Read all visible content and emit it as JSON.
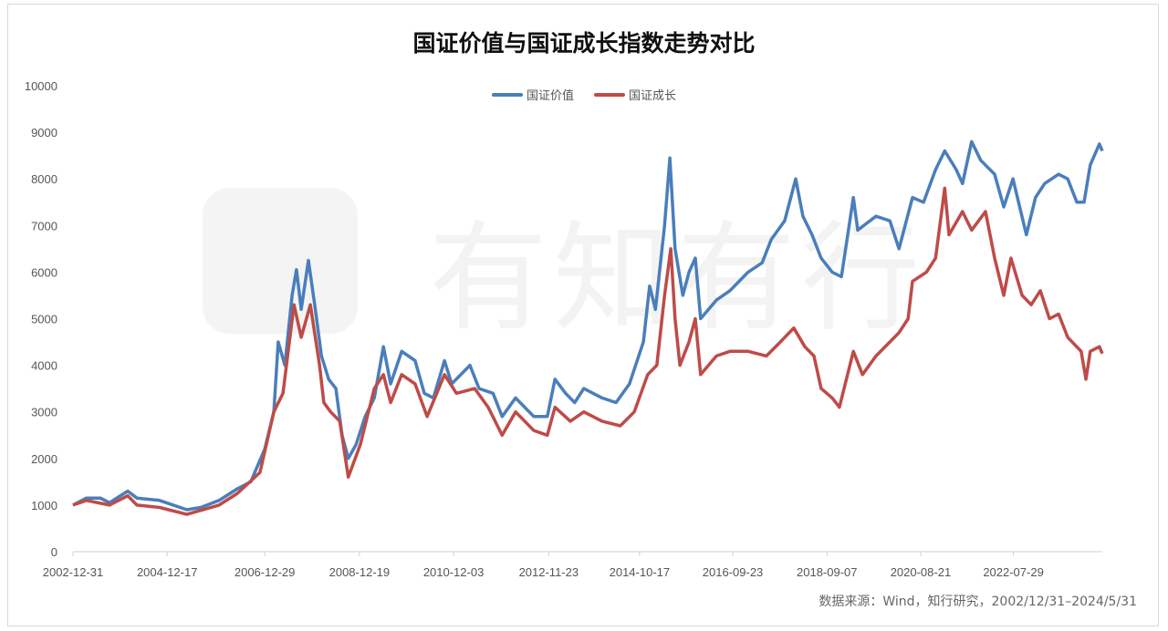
{
  "watermark": "有知有行",
  "chart_data": {
    "type": "line",
    "title": "国证价值与国证成长指数走势对比",
    "xlabel": "",
    "ylabel": "",
    "ylim": [
      0,
      10000
    ],
    "xlim": [
      2003.0,
      2024.42
    ],
    "yticks": [
      "0",
      "1000",
      "2000",
      "3000",
      "4000",
      "5000",
      "6000",
      "7000",
      "8000",
      "9000",
      "10000"
    ],
    "ytick_values": [
      0,
      1000,
      2000,
      3000,
      4000,
      5000,
      6000,
      7000,
      8000,
      9000,
      10000
    ],
    "xticks": [
      {
        "label": "2002-12-31",
        "t": 2003.0
      },
      {
        "label": "2004-12-17",
        "t": 2004.96
      },
      {
        "label": "2006-12-29",
        "t": 2006.99
      },
      {
        "label": "2008-12-19",
        "t": 2008.96
      },
      {
        "label": "2010-12-03",
        "t": 2010.92
      },
      {
        "label": "2012-11-23",
        "t": 2012.9
      },
      {
        "label": "2014-10-17",
        "t": 2014.79
      },
      {
        "label": "2016-09-23",
        "t": 2016.73
      },
      {
        "label": "2018-09-07",
        "t": 2018.69
      },
      {
        "label": "2020-08-21",
        "t": 2020.64
      },
      {
        "label": "2022-07-29",
        "t": 2022.57
      }
    ],
    "grid": false,
    "legend_position": "top-center",
    "source": "数据来源：Wind，知行研究，2002/12/31–2024/5/31",
    "series": [
      {
        "name": "国证价值",
        "color": "#4a7ebb",
        "points": [
          [
            2003.0,
            1000
          ],
          [
            2003.28,
            1150
          ],
          [
            2003.57,
            1150
          ],
          [
            2003.76,
            1050
          ],
          [
            2004.14,
            1300
          ],
          [
            2004.33,
            1150
          ],
          [
            2004.8,
            1100
          ],
          [
            2005.37,
            900
          ],
          [
            2005.66,
            950
          ],
          [
            2006.04,
            1100
          ],
          [
            2006.42,
            1350
          ],
          [
            2006.7,
            1500
          ],
          [
            2006.99,
            2200
          ],
          [
            2007.18,
            3000
          ],
          [
            2007.27,
            4500
          ],
          [
            2007.41,
            4000
          ],
          [
            2007.56,
            5500
          ],
          [
            2007.65,
            6050
          ],
          [
            2007.75,
            5200
          ],
          [
            2007.9,
            6250
          ],
          [
            2008.03,
            5300
          ],
          [
            2008.17,
            4200
          ],
          [
            2008.32,
            3700
          ],
          [
            2008.47,
            3500
          ],
          [
            2008.6,
            2500
          ],
          [
            2008.73,
            2000
          ],
          [
            2008.89,
            2300
          ],
          [
            2009.08,
            2900
          ],
          [
            2009.27,
            3300
          ],
          [
            2009.46,
            4400
          ],
          [
            2009.61,
            3600
          ],
          [
            2009.84,
            4300
          ],
          [
            2010.12,
            4100
          ],
          [
            2010.31,
            3400
          ],
          [
            2010.5,
            3300
          ],
          [
            2010.73,
            4100
          ],
          [
            2010.88,
            3600
          ],
          [
            2011.26,
            4000
          ],
          [
            2011.45,
            3500
          ],
          [
            2011.74,
            3400
          ],
          [
            2011.93,
            2900
          ],
          [
            2012.21,
            3300
          ],
          [
            2012.59,
            2900
          ],
          [
            2012.87,
            2900
          ],
          [
            2013.03,
            3700
          ],
          [
            2013.25,
            3400
          ],
          [
            2013.44,
            3200
          ],
          [
            2013.63,
            3500
          ],
          [
            2014.01,
            3300
          ],
          [
            2014.3,
            3200
          ],
          [
            2014.58,
            3600
          ],
          [
            2014.87,
            4500
          ],
          [
            2015.0,
            5700
          ],
          [
            2015.12,
            5200
          ],
          [
            2015.31,
            7000
          ],
          [
            2015.42,
            8450
          ],
          [
            2015.53,
            6500
          ],
          [
            2015.69,
            5500
          ],
          [
            2015.82,
            6000
          ],
          [
            2015.95,
            6300
          ],
          [
            2016.06,
            5000
          ],
          [
            2016.39,
            5400
          ],
          [
            2016.67,
            5600
          ],
          [
            2017.05,
            6000
          ],
          [
            2017.34,
            6200
          ],
          [
            2017.53,
            6700
          ],
          [
            2017.81,
            7100
          ],
          [
            2018.04,
            8000
          ],
          [
            2018.19,
            7200
          ],
          [
            2018.38,
            6800
          ],
          [
            2018.57,
            6300
          ],
          [
            2018.8,
            6000
          ],
          [
            2018.99,
            5900
          ],
          [
            2019.24,
            7600
          ],
          [
            2019.33,
            6900
          ],
          [
            2019.71,
            7200
          ],
          [
            2020.0,
            7100
          ],
          [
            2020.19,
            6500
          ],
          [
            2020.47,
            7600
          ],
          [
            2020.7,
            7500
          ],
          [
            2020.95,
            8200
          ],
          [
            2021.14,
            8600
          ],
          [
            2021.38,
            8200
          ],
          [
            2021.51,
            7900
          ],
          [
            2021.7,
            8800
          ],
          [
            2021.89,
            8400
          ],
          [
            2022.18,
            8100
          ],
          [
            2022.37,
            7400
          ],
          [
            2022.56,
            8000
          ],
          [
            2022.84,
            6800
          ],
          [
            2023.03,
            7600
          ],
          [
            2023.22,
            7900
          ],
          [
            2023.51,
            8100
          ],
          [
            2023.7,
            8000
          ],
          [
            2023.89,
            7500
          ],
          [
            2024.04,
            7500
          ],
          [
            2024.17,
            8300
          ],
          [
            2024.36,
            8750
          ],
          [
            2024.42,
            8600
          ]
        ]
      },
      {
        "name": "国证成长",
        "color": "#be4b48",
        "points": [
          [
            2003.0,
            1000
          ],
          [
            2003.28,
            1100
          ],
          [
            2003.76,
            1000
          ],
          [
            2004.14,
            1200
          ],
          [
            2004.33,
            1000
          ],
          [
            2004.8,
            950
          ],
          [
            2005.37,
            800
          ],
          [
            2006.04,
            1000
          ],
          [
            2006.42,
            1250
          ],
          [
            2006.89,
            1700
          ],
          [
            2007.18,
            3000
          ],
          [
            2007.37,
            3400
          ],
          [
            2007.6,
            5300
          ],
          [
            2007.75,
            4600
          ],
          [
            2007.94,
            5300
          ],
          [
            2008.13,
            4000
          ],
          [
            2008.22,
            3200
          ],
          [
            2008.36,
            3000
          ],
          [
            2008.55,
            2800
          ],
          [
            2008.73,
            1600
          ],
          [
            2008.98,
            2300
          ],
          [
            2009.27,
            3500
          ],
          [
            2009.46,
            3800
          ],
          [
            2009.61,
            3200
          ],
          [
            2009.84,
            3800
          ],
          [
            2010.12,
            3600
          ],
          [
            2010.37,
            2900
          ],
          [
            2010.73,
            3800
          ],
          [
            2010.98,
            3400
          ],
          [
            2011.36,
            3500
          ],
          [
            2011.64,
            3100
          ],
          [
            2011.93,
            2500
          ],
          [
            2012.21,
            3000
          ],
          [
            2012.59,
            2600
          ],
          [
            2012.87,
            2500
          ],
          [
            2013.03,
            3100
          ],
          [
            2013.35,
            2800
          ],
          [
            2013.63,
            3000
          ],
          [
            2014.01,
            2800
          ],
          [
            2014.39,
            2700
          ],
          [
            2014.68,
            3000
          ],
          [
            2014.96,
            3800
          ],
          [
            2015.15,
            4000
          ],
          [
            2015.31,
            5500
          ],
          [
            2015.44,
            6500
          ],
          [
            2015.53,
            5000
          ],
          [
            2015.63,
            4000
          ],
          [
            2015.82,
            4500
          ],
          [
            2015.95,
            5000
          ],
          [
            2016.06,
            3800
          ],
          [
            2016.39,
            4200
          ],
          [
            2016.67,
            4300
          ],
          [
            2017.05,
            4300
          ],
          [
            2017.43,
            4200
          ],
          [
            2017.72,
            4500
          ],
          [
            2018.0,
            4800
          ],
          [
            2018.23,
            4400
          ],
          [
            2018.42,
            4200
          ],
          [
            2018.57,
            3500
          ],
          [
            2018.8,
            3300
          ],
          [
            2018.95,
            3100
          ],
          [
            2019.24,
            4300
          ],
          [
            2019.43,
            3800
          ],
          [
            2019.71,
            4200
          ],
          [
            2020.0,
            4500
          ],
          [
            2020.19,
            4700
          ],
          [
            2020.38,
            5000
          ],
          [
            2020.47,
            5800
          ],
          [
            2020.76,
            6000
          ],
          [
            2020.95,
            6300
          ],
          [
            2021.14,
            7800
          ],
          [
            2021.23,
            6800
          ],
          [
            2021.51,
            7300
          ],
          [
            2021.7,
            6900
          ],
          [
            2021.99,
            7300
          ],
          [
            2022.18,
            6300
          ],
          [
            2022.37,
            5500
          ],
          [
            2022.52,
            6300
          ],
          [
            2022.75,
            5500
          ],
          [
            2022.94,
            5300
          ],
          [
            2023.13,
            5600
          ],
          [
            2023.32,
            5000
          ],
          [
            2023.51,
            5100
          ],
          [
            2023.7,
            4600
          ],
          [
            2023.98,
            4300
          ],
          [
            2024.08,
            3700
          ],
          [
            2024.17,
            4300
          ],
          [
            2024.36,
            4400
          ],
          [
            2024.42,
            4250
          ]
        ]
      }
    ]
  }
}
